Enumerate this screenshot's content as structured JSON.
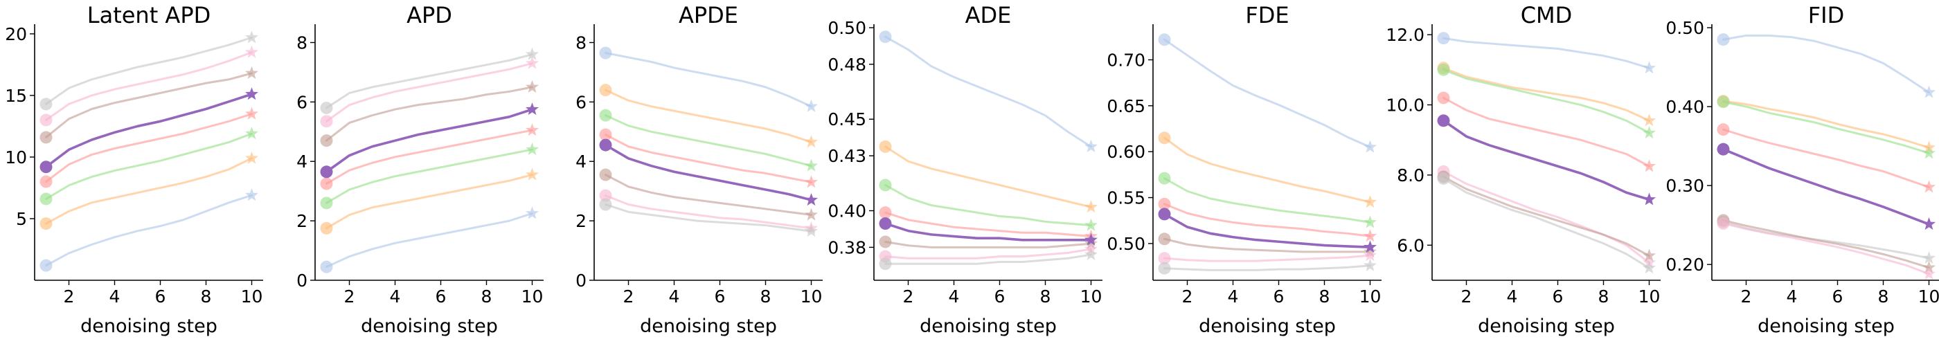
{
  "xlabel": "denoising step",
  "chart_data": [
    {
      "type": "line",
      "title": "Latent APD",
      "xlabel": "denoising step",
      "xlim": [
        0.5,
        10.5
      ],
      "ylim": [
        0,
        20.5
      ],
      "xticks": [
        2,
        4,
        6,
        8,
        10
      ],
      "yticks": [
        5,
        10,
        15,
        20
      ],
      "ytick_labels": [
        "5",
        "10",
        "15",
        "20"
      ],
      "series": [
        {
          "color": "#aec7e8",
          "highlight": false,
          "values": [
            1.2,
            2.2,
            2.9,
            3.5,
            4.0,
            4.4,
            4.9,
            5.6,
            6.3,
            6.9
          ]
        },
        {
          "color": "#ffbb78",
          "highlight": false,
          "values": [
            4.6,
            5.6,
            6.3,
            6.7,
            7.1,
            7.5,
            7.9,
            8.4,
            9.0,
            9.9
          ]
        },
        {
          "color": "#98df8a",
          "highlight": false,
          "values": [
            6.6,
            7.7,
            8.4,
            8.9,
            9.3,
            9.7,
            10.2,
            10.7,
            11.2,
            11.9
          ]
        },
        {
          "color": "#ff9896",
          "highlight": false,
          "values": [
            8.0,
            9.4,
            10.2,
            10.7,
            11.1,
            11.5,
            11.9,
            12.4,
            12.9,
            13.5
          ]
        },
        {
          "color": "#9467bd",
          "highlight": true,
          "values": [
            9.2,
            10.6,
            11.4,
            12.0,
            12.5,
            12.9,
            13.4,
            13.9,
            14.5,
            15.1
          ]
        },
        {
          "color": "#f7b6d2",
          "highlight": false,
          "values": [
            13.0,
            14.3,
            15.0,
            15.5,
            15.9,
            16.3,
            16.7,
            17.2,
            17.8,
            18.5
          ]
        },
        {
          "color": "#c49c94",
          "highlight": false,
          "values": [
            11.6,
            13.1,
            13.9,
            14.4,
            14.8,
            15.2,
            15.6,
            16.0,
            16.3,
            16.8
          ]
        },
        {
          "color": "#c7c7c7",
          "highlight": false,
          "values": [
            14.3,
            15.6,
            16.3,
            16.8,
            17.3,
            17.7,
            18.1,
            18.6,
            19.1,
            19.7
          ]
        }
      ]
    },
    {
      "type": "line",
      "title": "APD",
      "xlabel": "denoising step",
      "xlim": [
        0.5,
        10.5
      ],
      "ylim": [
        0,
        8.5
      ],
      "xticks": [
        2,
        4,
        6,
        8,
        10
      ],
      "yticks": [
        0,
        2,
        4,
        6,
        8
      ],
      "ytick_labels": [
        "0",
        "2",
        "4",
        "6",
        "8"
      ],
      "series": [
        {
          "color": "#aec7e8",
          "highlight": false,
          "values": [
            0.45,
            0.8,
            1.05,
            1.25,
            1.4,
            1.55,
            1.7,
            1.85,
            2.0,
            2.25
          ]
        },
        {
          "color": "#ffbb78",
          "highlight": false,
          "values": [
            1.75,
            2.2,
            2.45,
            2.6,
            2.75,
            2.9,
            3.05,
            3.2,
            3.35,
            3.55
          ]
        },
        {
          "color": "#98df8a",
          "highlight": false,
          "values": [
            2.6,
            3.05,
            3.3,
            3.5,
            3.65,
            3.8,
            3.95,
            4.1,
            4.25,
            4.4
          ]
        },
        {
          "color": "#ff9896",
          "highlight": false,
          "values": [
            3.25,
            3.7,
            3.95,
            4.15,
            4.3,
            4.45,
            4.6,
            4.75,
            4.9,
            5.05
          ]
        },
        {
          "color": "#9467bd",
          "highlight": true,
          "values": [
            3.65,
            4.2,
            4.5,
            4.7,
            4.9,
            5.05,
            5.2,
            5.35,
            5.5,
            5.75
          ]
        },
        {
          "color": "#f7b6d2",
          "highlight": false,
          "values": [
            5.35,
            5.9,
            6.15,
            6.35,
            6.5,
            6.65,
            6.8,
            6.95,
            7.1,
            7.3
          ]
        },
        {
          "color": "#c49c94",
          "highlight": false,
          "values": [
            4.7,
            5.3,
            5.55,
            5.75,
            5.9,
            6.0,
            6.1,
            6.25,
            6.35,
            6.5
          ]
        },
        {
          "color": "#c7c7c7",
          "highlight": false,
          "values": [
            5.8,
            6.3,
            6.5,
            6.65,
            6.8,
            6.95,
            7.1,
            7.25,
            7.4,
            7.6
          ]
        }
      ]
    },
    {
      "type": "line",
      "title": "APDE",
      "xlabel": "denoising step",
      "xlim": [
        0.5,
        10.5
      ],
      "ylim": [
        0,
        8.5
      ],
      "xticks": [
        2,
        4,
        6,
        8,
        10
      ],
      "yticks": [
        0,
        2,
        4,
        6,
        8
      ],
      "ytick_labels": [
        "0",
        "2",
        "4",
        "6",
        "8"
      ],
      "series": [
        {
          "color": "#aec7e8",
          "highlight": false,
          "values": [
            7.65,
            7.5,
            7.35,
            7.15,
            7.0,
            6.85,
            6.7,
            6.5,
            6.2,
            5.85
          ]
        },
        {
          "color": "#ffbb78",
          "highlight": false,
          "values": [
            6.4,
            6.05,
            5.85,
            5.7,
            5.55,
            5.4,
            5.25,
            5.1,
            4.9,
            4.65
          ]
        },
        {
          "color": "#98df8a",
          "highlight": false,
          "values": [
            5.55,
            5.2,
            5.0,
            4.85,
            4.7,
            4.55,
            4.4,
            4.25,
            4.05,
            3.85
          ]
        },
        {
          "color": "#ff9896",
          "highlight": false,
          "values": [
            4.9,
            4.5,
            4.3,
            4.15,
            4.0,
            3.85,
            3.7,
            3.6,
            3.45,
            3.3
          ]
        },
        {
          "color": "#9467bd",
          "highlight": true,
          "values": [
            4.55,
            4.1,
            3.85,
            3.65,
            3.5,
            3.35,
            3.2,
            3.05,
            2.9,
            2.7
          ]
        },
        {
          "color": "#c49c94",
          "highlight": false,
          "values": [
            3.55,
            3.15,
            2.95,
            2.8,
            2.7,
            2.6,
            2.5,
            2.4,
            2.3,
            2.2
          ]
        },
        {
          "color": "#f7b6d2",
          "highlight": false,
          "values": [
            2.85,
            2.55,
            2.4,
            2.3,
            2.2,
            2.1,
            2.05,
            1.95,
            1.85,
            1.75
          ]
        },
        {
          "color": "#c7c7c7",
          "highlight": false,
          "values": [
            2.55,
            2.3,
            2.2,
            2.1,
            2.0,
            1.95,
            1.9,
            1.85,
            1.75,
            1.65
          ]
        }
      ]
    },
    {
      "type": "line",
      "title": "ADE",
      "xlabel": "denoising step",
      "xlim": [
        0.5,
        10.5
      ],
      "ylim": [
        0.362,
        0.5
      ],
      "xticks": [
        2,
        4,
        6,
        8,
        10
      ],
      "yticks": [
        0.38,
        0.4,
        0.43,
        0.45,
        0.48,
        0.5
      ],
      "ytick_labels": [
        "0.38",
        "0.40",
        "0.43",
        "0.45",
        "0.48",
        "0.50"
      ],
      "series": [
        {
          "color": "#aec7e8",
          "highlight": false,
          "values": [
            0.495,
            0.488,
            0.479,
            0.473,
            0.468,
            0.463,
            0.458,
            0.452,
            0.443,
            0.435
          ]
        },
        {
          "color": "#ffbb78",
          "highlight": false,
          "values": [
            0.435,
            0.427,
            0.423,
            0.42,
            0.417,
            0.414,
            0.411,
            0.408,
            0.405,
            0.402
          ]
        },
        {
          "color": "#98df8a",
          "highlight": false,
          "values": [
            0.414,
            0.407,
            0.403,
            0.401,
            0.399,
            0.397,
            0.396,
            0.394,
            0.393,
            0.392
          ]
        },
        {
          "color": "#ff9896",
          "highlight": false,
          "values": [
            0.399,
            0.395,
            0.393,
            0.391,
            0.39,
            0.389,
            0.388,
            0.388,
            0.387,
            0.386
          ]
        },
        {
          "color": "#9467bd",
          "highlight": true,
          "values": [
            0.393,
            0.389,
            0.387,
            0.386,
            0.385,
            0.385,
            0.384,
            0.384,
            0.384,
            0.384
          ]
        },
        {
          "color": "#c49c94",
          "highlight": false,
          "values": [
            0.383,
            0.381,
            0.38,
            0.38,
            0.38,
            0.38,
            0.38,
            0.38,
            0.381,
            0.382
          ]
        },
        {
          "color": "#f7b6d2",
          "highlight": false,
          "values": [
            0.375,
            0.374,
            0.374,
            0.374,
            0.374,
            0.375,
            0.375,
            0.376,
            0.377,
            0.379
          ]
        },
        {
          "color": "#c7c7c7",
          "highlight": false,
          "values": [
            0.371,
            0.371,
            0.371,
            0.371,
            0.371,
            0.372,
            0.372,
            0.373,
            0.374,
            0.376
          ]
        }
      ]
    },
    {
      "type": "line",
      "title": "FDE",
      "xlabel": "denoising step",
      "xlim": [
        0.5,
        10.5
      ],
      "ylim": [
        0.46,
        0.735
      ],
      "xticks": [
        2,
        4,
        6,
        8,
        10
      ],
      "yticks": [
        0.5,
        0.55,
        0.6,
        0.65,
        0.7
      ],
      "ytick_labels": [
        "0.50",
        "0.55",
        "0.60",
        "0.65",
        "0.70"
      ],
      "series": [
        {
          "color": "#aec7e8",
          "highlight": false,
          "values": [
            0.722,
            0.705,
            0.688,
            0.672,
            0.661,
            0.651,
            0.64,
            0.629,
            0.616,
            0.605
          ]
        },
        {
          "color": "#ffbb78",
          "highlight": false,
          "values": [
            0.615,
            0.597,
            0.587,
            0.58,
            0.574,
            0.568,
            0.562,
            0.557,
            0.551,
            0.545
          ]
        },
        {
          "color": "#98df8a",
          "highlight": false,
          "values": [
            0.571,
            0.557,
            0.549,
            0.544,
            0.54,
            0.536,
            0.533,
            0.53,
            0.527,
            0.523
          ]
        },
        {
          "color": "#ff9896",
          "highlight": false,
          "values": [
            0.543,
            0.533,
            0.527,
            0.523,
            0.52,
            0.518,
            0.516,
            0.513,
            0.511,
            0.508
          ]
        },
        {
          "color": "#9467bd",
          "highlight": true,
          "values": [
            0.532,
            0.518,
            0.511,
            0.507,
            0.504,
            0.502,
            0.5,
            0.498,
            0.497,
            0.496
          ]
        },
        {
          "color": "#c49c94",
          "highlight": false,
          "values": [
            0.505,
            0.499,
            0.496,
            0.494,
            0.493,
            0.492,
            0.491,
            0.491,
            0.491,
            0.491
          ]
        },
        {
          "color": "#f7b6d2",
          "highlight": false,
          "values": [
            0.484,
            0.482,
            0.481,
            0.481,
            0.481,
            0.482,
            0.483,
            0.484,
            0.485,
            0.487
          ]
        },
        {
          "color": "#c7c7c7",
          "highlight": false,
          "values": [
            0.473,
            0.472,
            0.471,
            0.471,
            0.471,
            0.472,
            0.472,
            0.473,
            0.474,
            0.476
          ]
        }
      ]
    },
    {
      "type": "line",
      "title": "CMD",
      "xlabel": "denoising step",
      "xlim": [
        0.5,
        10.5
      ],
      "ylim": [
        5.0,
        12.2
      ],
      "xticks": [
        2,
        4,
        6,
        8,
        10
      ],
      "yticks": [
        6,
        8,
        10,
        12
      ],
      "ytick_labels": [
        "6.0",
        "8.0",
        "10.0",
        "12.0"
      ],
      "series": [
        {
          "color": "#aec7e8",
          "highlight": false,
          "values": [
            11.9,
            11.8,
            11.75,
            11.7,
            11.65,
            11.6,
            11.5,
            11.4,
            11.25,
            11.05
          ]
        },
        {
          "color": "#ffbb78",
          "highlight": false,
          "values": [
            11.05,
            10.8,
            10.65,
            10.5,
            10.4,
            10.3,
            10.2,
            10.05,
            9.85,
            9.55
          ]
        },
        {
          "color": "#98df8a",
          "highlight": false,
          "values": [
            11.0,
            10.75,
            10.6,
            10.45,
            10.3,
            10.15,
            10.0,
            9.8,
            9.55,
            9.2
          ]
        },
        {
          "color": "#ff9896",
          "highlight": false,
          "values": [
            10.2,
            9.85,
            9.6,
            9.45,
            9.3,
            9.15,
            9.0,
            8.8,
            8.6,
            8.25
          ]
        },
        {
          "color": "#9467bd",
          "highlight": true,
          "values": [
            9.55,
            9.1,
            8.85,
            8.65,
            8.45,
            8.25,
            8.05,
            7.8,
            7.5,
            7.3
          ]
        },
        {
          "color": "#f7b6d2",
          "highlight": false,
          "values": [
            8.1,
            7.75,
            7.5,
            7.25,
            7.0,
            6.8,
            6.55,
            6.3,
            6.0,
            5.5
          ]
        },
        {
          "color": "#c49c94",
          "highlight": false,
          "values": [
            7.95,
            7.6,
            7.35,
            7.1,
            6.9,
            6.7,
            6.5,
            6.3,
            6.05,
            5.7
          ]
        },
        {
          "color": "#c7c7c7",
          "highlight": false,
          "values": [
            7.9,
            7.5,
            7.25,
            7.0,
            6.8,
            6.55,
            6.3,
            6.05,
            5.75,
            5.35
          ]
        }
      ]
    },
    {
      "type": "line",
      "title": "FID",
      "xlabel": "denoising step",
      "xlim": [
        0.5,
        10.5
      ],
      "ylim": [
        0.18,
        0.5
      ],
      "xticks": [
        2,
        4,
        6,
        8,
        10
      ],
      "yticks": [
        0.2,
        0.3,
        0.4,
        0.5
      ],
      "ytick_labels": [
        "0.20",
        "0.30",
        "0.40",
        "0.50"
      ],
      "series": [
        {
          "color": "#aec7e8",
          "highlight": false,
          "values": [
            0.485,
            0.49,
            0.49,
            0.488,
            0.483,
            0.475,
            0.467,
            0.455,
            0.437,
            0.418
          ]
        },
        {
          "color": "#ffbb78",
          "highlight": false,
          "values": [
            0.407,
            0.403,
            0.397,
            0.392,
            0.386,
            0.378,
            0.371,
            0.365,
            0.357,
            0.348
          ]
        },
        {
          "color": "#98df8a",
          "highlight": false,
          "values": [
            0.406,
            0.4,
            0.392,
            0.386,
            0.38,
            0.372,
            0.365,
            0.358,
            0.35,
            0.341
          ]
        },
        {
          "color": "#ff9896",
          "highlight": false,
          "values": [
            0.371,
            0.362,
            0.354,
            0.347,
            0.34,
            0.333,
            0.325,
            0.318,
            0.308,
            0.298
          ]
        },
        {
          "color": "#9467bd",
          "highlight": true,
          "values": [
            0.346,
            0.334,
            0.322,
            0.312,
            0.302,
            0.292,
            0.283,
            0.273,
            0.262,
            0.251
          ]
        },
        {
          "color": "#c7c7c7",
          "highlight": false,
          "values": [
            0.254,
            0.246,
            0.24,
            0.236,
            0.232,
            0.228,
            0.224,
            0.219,
            0.214,
            0.208
          ]
        },
        {
          "color": "#c49c94",
          "highlight": false,
          "values": [
            0.256,
            0.249,
            0.243,
            0.237,
            0.231,
            0.226,
            0.22,
            0.213,
            0.205,
            0.196
          ]
        },
        {
          "color": "#f7b6d2",
          "highlight": false,
          "values": [
            0.252,
            0.245,
            0.239,
            0.234,
            0.228,
            0.222,
            0.215,
            0.207,
            0.199,
            0.188
          ]
        }
      ]
    }
  ]
}
